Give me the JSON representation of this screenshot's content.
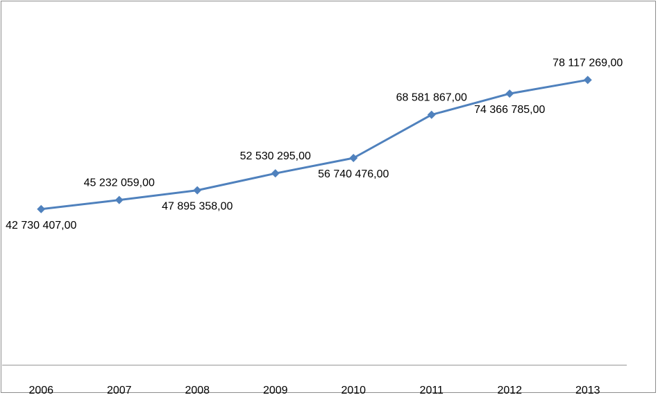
{
  "chart_data": {
    "type": "line",
    "title": "",
    "xlabel": "",
    "ylabel": "",
    "categories": [
      "2006",
      "2007",
      "2008",
      "2009",
      "2010",
      "2011",
      "2012",
      "2013"
    ],
    "series": [
      {
        "values": [
          42730407.0,
          45232059.0,
          47895358.0,
          52530295.0,
          56740476.0,
          68581867.0,
          74366785.0,
          78117269.0
        ],
        "labels": [
          "42 730 407,00",
          "45 232 059,00",
          "47 895 358,00",
          "52 530 295,00",
          "56 740 476,00",
          "68 581 867,00",
          "74 366 785,00",
          "78 117 269,00"
        ],
        "label_positions": [
          "below",
          "above",
          "below",
          "above",
          "below",
          "above",
          "below",
          "above"
        ],
        "color": "#4f81bd",
        "marker": "diamond"
      }
    ],
    "ylim": [
      0,
      100000000
    ],
    "grid": false,
    "legend": "none",
    "axis_color": "#8c8c8c"
  }
}
